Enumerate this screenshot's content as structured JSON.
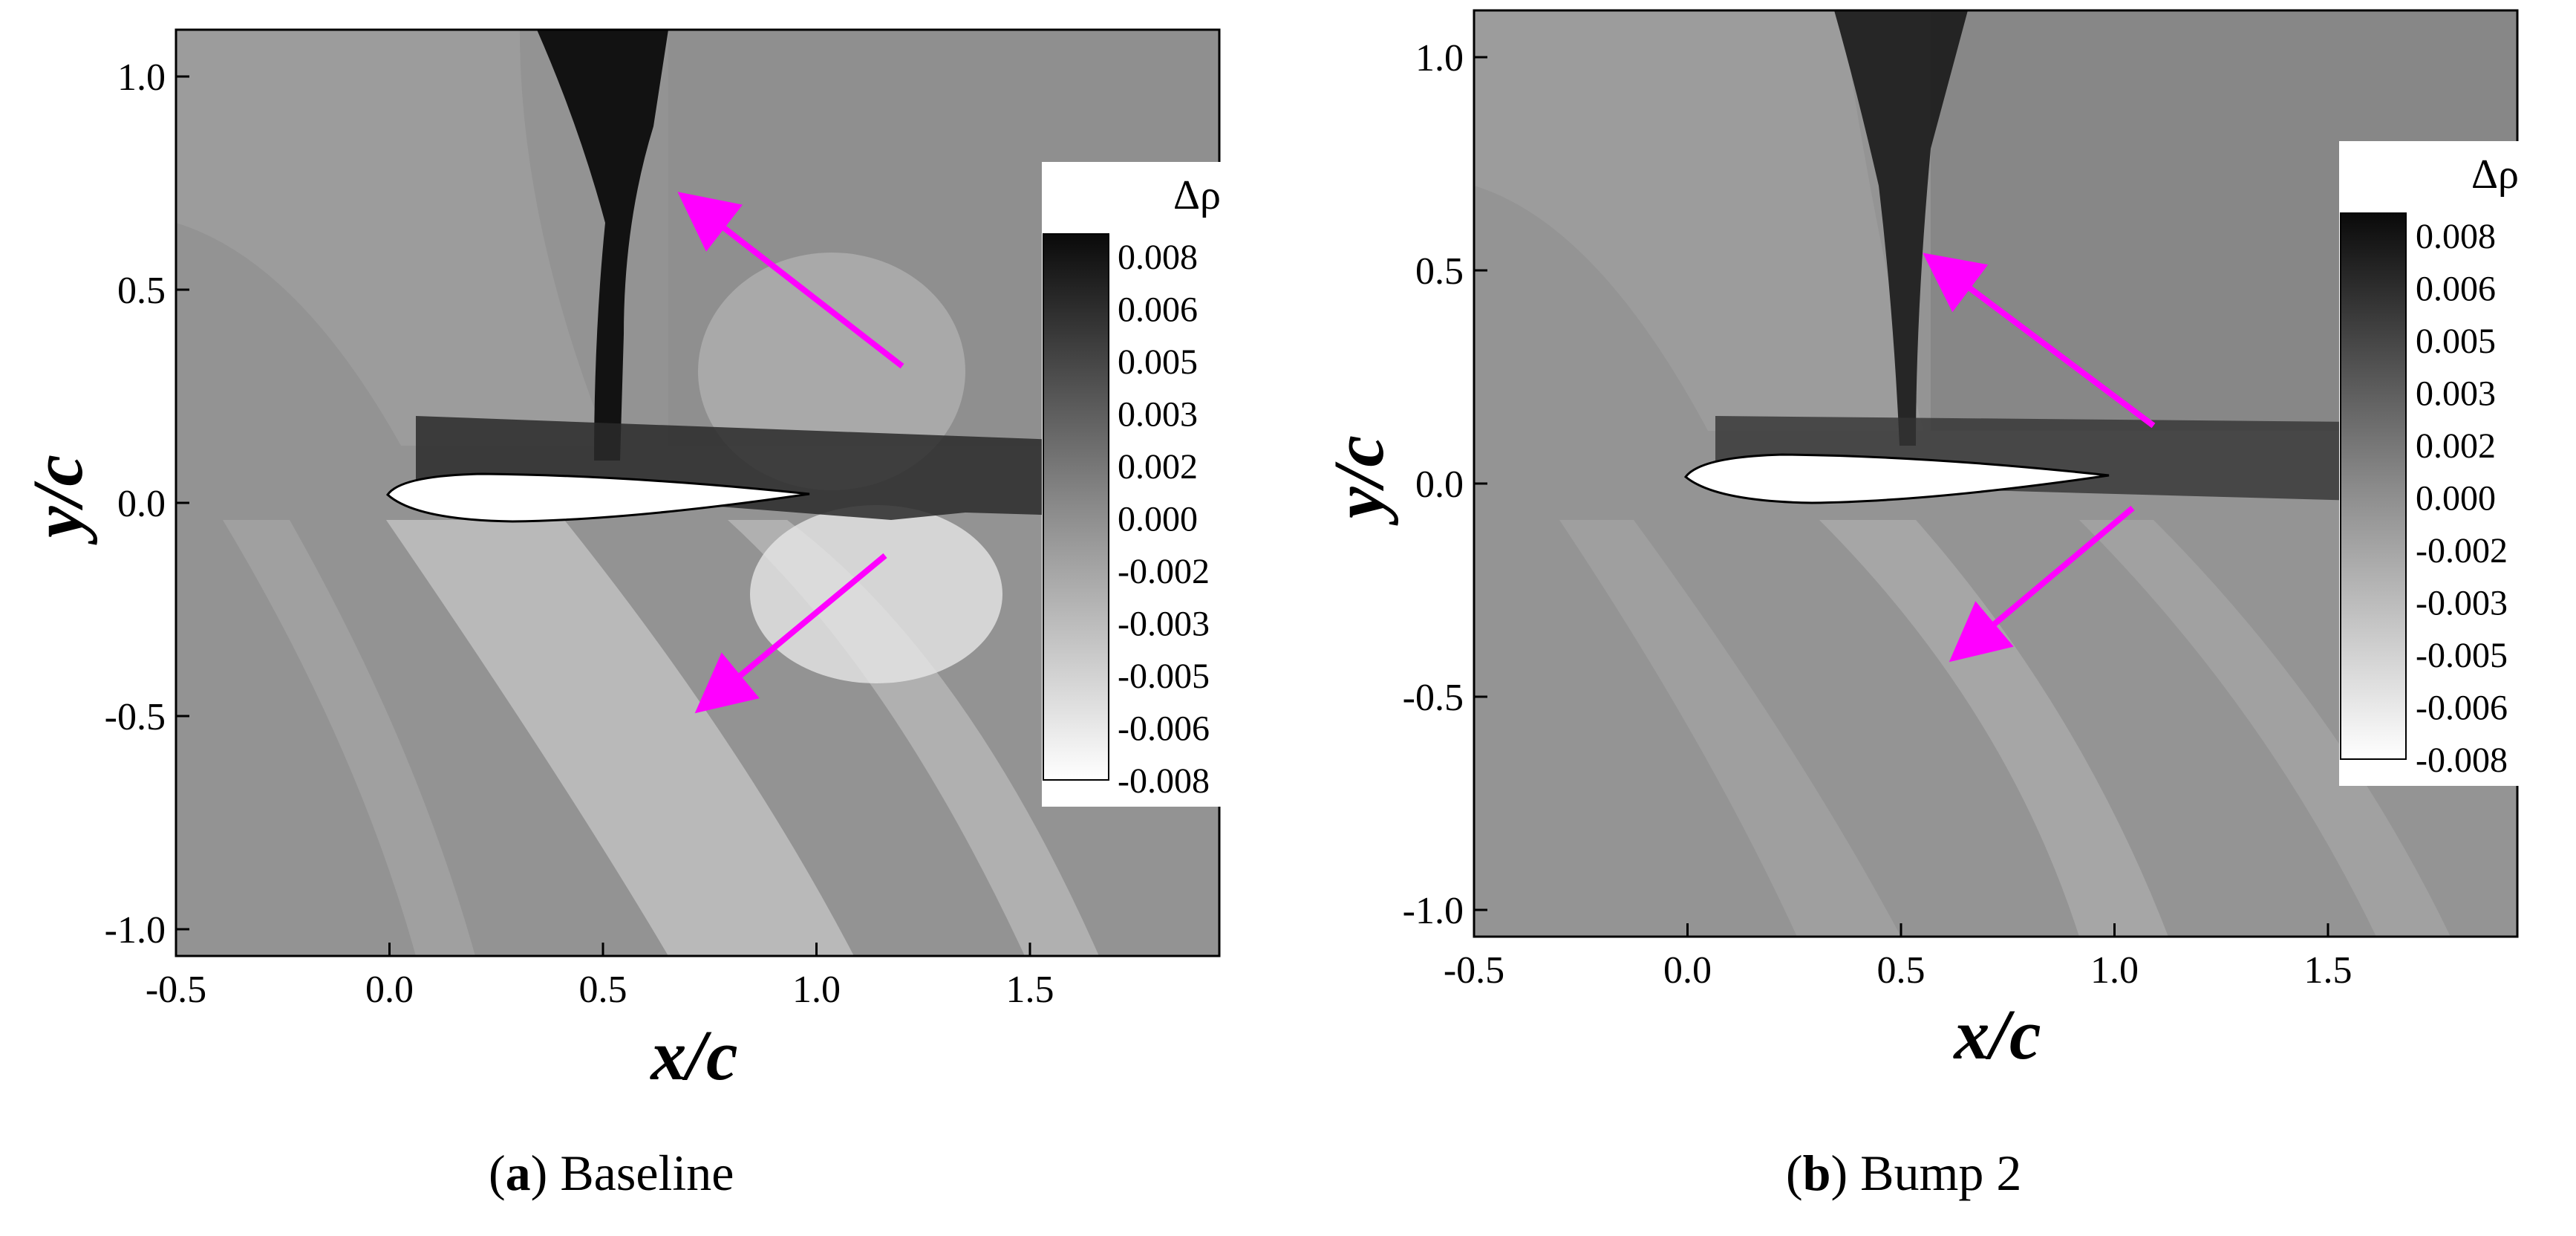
{
  "figure": {
    "panels": [
      {
        "id": "a",
        "caption_letter": "a",
        "caption_text": "Baseline",
        "xlabel": "x/c",
        "ylabel": "y/c",
        "x_ticks": [
          "-0.5",
          "0.0",
          "0.5",
          "1.0",
          "1.5"
        ],
        "y_ticks": [
          "1.0",
          "0.5",
          "0.0",
          "-0.5",
          "-1.0"
        ],
        "colorbar": {
          "title": "Δρ",
          "ticks": [
            "0.008",
            "0.006",
            "0.005",
            "0.003",
            "0.002",
            "0.000",
            "-0.002",
            "-0.003",
            "-0.005",
            "-0.006",
            "-0.008"
          ]
        }
      },
      {
        "id": "b",
        "caption_letter": "b",
        "caption_text": "Bump 2",
        "xlabel": "x/c",
        "ylabel": "y/c",
        "x_ticks": [
          "-0.5",
          "0.0",
          "0.5",
          "1.0",
          "1.5"
        ],
        "y_ticks": [
          "1.0",
          "0.5",
          "0.0",
          "-0.5",
          "-1.0"
        ],
        "colorbar": {
          "title": "Δρ",
          "ticks": [
            "0.008",
            "0.006",
            "0.005",
            "0.003",
            "0.002",
            "0.000",
            "-0.002",
            "-0.003",
            "-0.005",
            "-0.006",
            "-0.008"
          ]
        }
      }
    ],
    "colors": {
      "field_gray": "#8f8f8f",
      "arrow": "#ff00ff",
      "airfoil": "#ffffff"
    }
  }
}
